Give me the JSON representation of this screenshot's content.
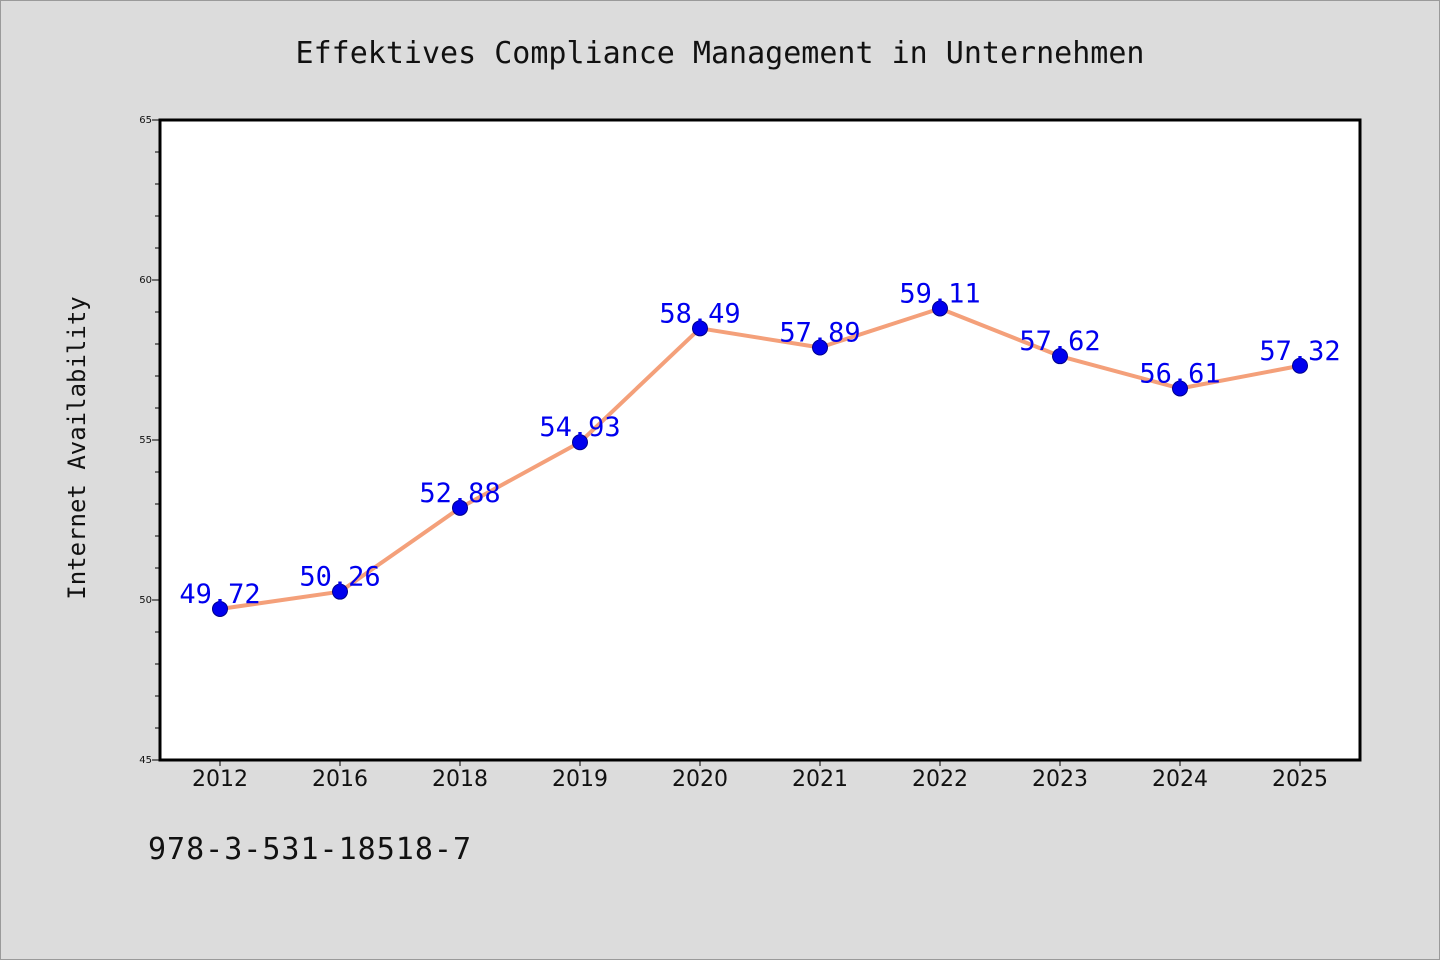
{
  "chart_data": {
    "type": "line",
    "title": "Effektives Compliance Management in Unternehmen",
    "xlabel": "",
    "ylabel": "Internet Availability",
    "categories": [
      "2012",
      "2016",
      "2018",
      "2019",
      "2020",
      "2021",
      "2022",
      "2023",
      "2024",
      "2025"
    ],
    "series": [
      {
        "values": [
          49.72,
          50.26,
          52.88,
          54.93,
          58.49,
          57.89,
          59.11,
          57.62,
          56.61,
          57.32
        ],
        "data_labels": [
          "49.72",
          "50.26",
          "52.88",
          "54.93",
          "58.49",
          "57.89",
          "59.11",
          "57.62",
          "56.61",
          "57.32"
        ]
      }
    ],
    "ylim": [
      45,
      65
    ],
    "yticks": [
      "45",
      "50",
      "55",
      "60",
      "65"
    ],
    "grid": false,
    "legend": "none",
    "colors": {
      "line": "#f4a07a",
      "marker": "#0000ee",
      "data_label": "#0000ee",
      "plot_background": "#ffffff",
      "page_background": "#dcdcdc"
    }
  },
  "footer": {
    "code": "978-3-531-18518-7"
  }
}
